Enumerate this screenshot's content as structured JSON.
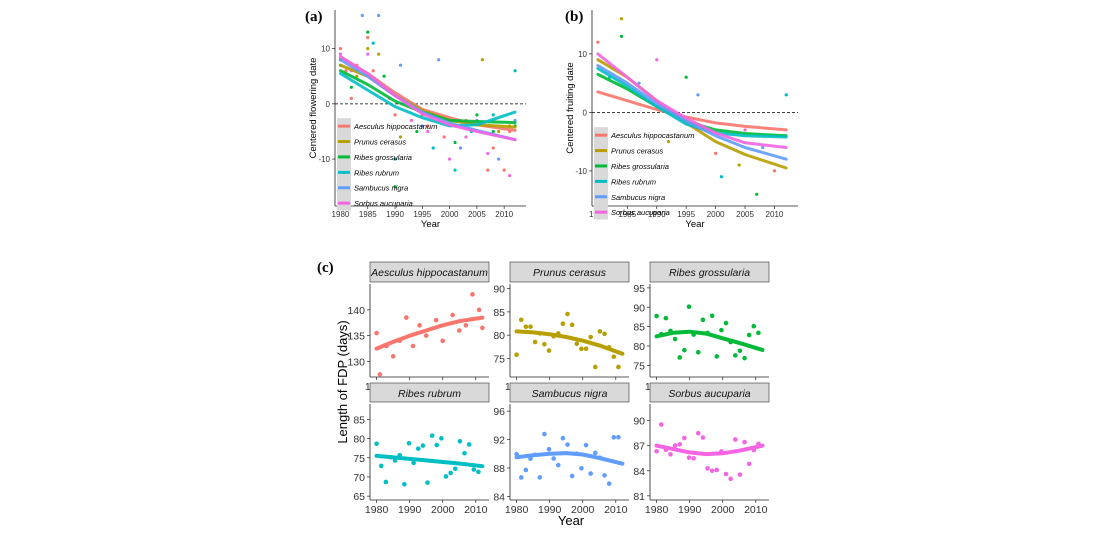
{
  "figure": {
    "panel_a_label": "(a)",
    "panel_b_label": "(b)",
    "panel_c_label": "(c)"
  },
  "chart_data": [
    {
      "id": "a",
      "type": "scatter",
      "xlabel": "Year",
      "ylabel": "Centered flowering date",
      "xlim": [
        1979,
        2014
      ],
      "ylim": [
        -18.5,
        17
      ],
      "xticks": [
        1980,
        1985,
        1990,
        1995,
        2000,
        2005,
        2010
      ],
      "yticks": [
        -10,
        0,
        10
      ],
      "reference_line": 0,
      "legend_position": "bottom-left",
      "series": [
        {
          "name": "Aesculus hippocastanum",
          "color": "#F8766D",
          "trend_x": [
            1980,
            1985,
            1990,
            1995,
            2000,
            2005,
            2012
          ],
          "trend_y": [
            8.5,
            5.5,
            2,
            -1,
            -2.5,
            -3.8,
            -4.8
          ],
          "points": [
            [
              1980,
              10
            ],
            [
              1981,
              6
            ],
            [
              1982,
              1
            ],
            [
              1983,
              7
            ],
            [
              1985,
              12
            ],
            [
              1986,
              6
            ],
            [
              1988,
              3
            ],
            [
              1990,
              -2
            ],
            [
              1993,
              0
            ],
            [
              1996,
              -4
            ],
            [
              1999,
              -6
            ],
            [
              2003,
              -3
            ],
            [
              2007,
              -12
            ],
            [
              2008,
              -8
            ],
            [
              2010,
              -12
            ],
            [
              2011,
              -5
            ]
          ]
        },
        {
          "name": "Prunus cerasus",
          "color": "#B79F00",
          "trend_x": [
            1980,
            1985,
            1990,
            1995,
            2000,
            2005,
            2012
          ],
          "trend_y": [
            7,
            5,
            1.5,
            -1.2,
            -3,
            -3.8,
            -4.2
          ],
          "points": [
            [
              1980,
              8
            ],
            [
              1983,
              5
            ],
            [
              1985,
              10
            ],
            [
              1987,
              9
            ],
            [
              1991,
              -6
            ],
            [
              1995,
              -2
            ],
            [
              1998,
              -3
            ],
            [
              2002,
              -4
            ],
            [
              2006,
              8
            ],
            [
              2009,
              -5
            ],
            [
              2011,
              -4
            ]
          ]
        },
        {
          "name": "Ribes grossularia",
          "color": "#00BA38",
          "trend_x": [
            1980,
            1985,
            1990,
            1995,
            2000,
            2005,
            2012
          ],
          "trend_y": [
            6,
            3.5,
            0.5,
            -1.5,
            -3,
            -3.2,
            -3.4
          ],
          "points": [
            [
              1980,
              8
            ],
            [
              1982,
              3
            ],
            [
              1985,
              13
            ],
            [
              1988,
              5
            ],
            [
              1990,
              -15
            ],
            [
              1994,
              -5
            ],
            [
              1997,
              -2
            ],
            [
              2001,
              -7
            ],
            [
              2005,
              -2
            ],
            [
              2008,
              -5
            ],
            [
              2012,
              -4
            ]
          ]
        },
        {
          "name": "Ribes rubrum",
          "color": "#00BFC4",
          "trend_x": [
            1980,
            1985,
            1990,
            1995,
            2000,
            2005,
            2012
          ],
          "trend_y": [
            5.5,
            2.5,
            -0.5,
            -2.5,
            -4,
            -3.8,
            -1.5
          ],
          "points": [
            [
              1980,
              7
            ],
            [
              1983,
              6
            ],
            [
              1986,
              11
            ],
            [
              1990,
              -10
            ],
            [
              1994,
              -1
            ],
            [
              1997,
              -8
            ],
            [
              2001,
              -12
            ],
            [
              2004,
              -5
            ],
            [
              2008,
              -2
            ],
            [
              2012,
              6
            ]
          ]
        },
        {
          "name": "Sambucus nigra",
          "color": "#619CFF",
          "trend_x": [
            1980,
            1985,
            1990,
            1995,
            2000,
            2005,
            2012
          ],
          "trend_y": [
            8,
            5,
            1.5,
            -1.5,
            -3.5,
            -4.8,
            -6.5
          ],
          "points": [
            [
              1980,
              9
            ],
            [
              1984,
              16
            ],
            [
              1987,
              16
            ],
            [
              1991,
              7
            ],
            [
              1995,
              -4
            ],
            [
              1998,
              8
            ],
            [
              2002,
              -8
            ],
            [
              2005,
              -3
            ],
            [
              2009,
              -10
            ],
            [
              2012,
              -3
            ]
          ]
        },
        {
          "name": "Sorbus aucuparia",
          "color": "#F564E3",
          "trend_x": [
            1980,
            1985,
            1990,
            1995,
            2000,
            2005,
            2012
          ],
          "trend_y": [
            8.5,
            5.5,
            1.5,
            -1.8,
            -3.8,
            -5,
            -6.5
          ],
          "points": [
            [
              1980,
              9
            ],
            [
              1982,
              6
            ],
            [
              1985,
              9
            ],
            [
              1989,
              1
            ],
            [
              1993,
              -3
            ],
            [
              1996,
              -5
            ],
            [
              2000,
              -10
            ],
            [
              2003,
              -6
            ],
            [
              2007,
              -9
            ],
            [
              2011,
              -13
            ]
          ]
        }
      ]
    },
    {
      "id": "b",
      "type": "scatter",
      "xlabel": "Year",
      "ylabel": "Centered fruiting date",
      "xlim": [
        1979,
        2014
      ],
      "ylim": [
        -16,
        17.5
      ],
      "xticks": [
        1980,
        1985,
        1990,
        1995,
        2000,
        2005,
        2010
      ],
      "yticks": [
        -10,
        0,
        10
      ],
      "reference_line": 0,
      "legend_position": "bottom-left",
      "series": [
        {
          "name": "Aesculus hippocastanum",
          "color": "#F8766D",
          "trend_x": [
            1980,
            1985,
            1990,
            1995,
            2000,
            2005,
            2012
          ],
          "trend_y": [
            3.5,
            2,
            0.5,
            -0.8,
            -1.8,
            -2.4,
            -3
          ]
        },
        {
          "name": "Prunus cerasus",
          "color": "#B79F00",
          "trend_x": [
            1980,
            1985,
            1990,
            1995,
            2000,
            2005,
            2012
          ],
          "trend_y": [
            9,
            6,
            2,
            -1.8,
            -5,
            -7.2,
            -9.5
          ]
        },
        {
          "name": "Ribes grossularia",
          "color": "#00BA38",
          "trend_x": [
            1980,
            1985,
            1990,
            1995,
            2000,
            2005,
            2012
          ],
          "trend_y": [
            6.5,
            4,
            1,
            -1.5,
            -3,
            -3.6,
            -4
          ]
        },
        {
          "name": "Ribes rubrum",
          "color": "#00BFC4",
          "trend_x": [
            1980,
            1985,
            1990,
            1995,
            2000,
            2005,
            2012
          ],
          "trend_y": [
            7.5,
            4.5,
            1,
            -2,
            -3.5,
            -4,
            -4.2
          ]
        },
        {
          "name": "Sambucus nigra",
          "color": "#619CFF",
          "trend_x": [
            1980,
            1985,
            1990,
            1995,
            2000,
            2005,
            2012
          ],
          "trend_y": [
            8,
            5,
            1.5,
            -1.5,
            -4,
            -6,
            -8
          ]
        },
        {
          "name": "Sorbus aucuparia",
          "color": "#F564E3",
          "trend_x": [
            1980,
            1985,
            1990,
            1995,
            2000,
            2005,
            2012
          ],
          "trend_y": [
            10,
            6,
            2,
            -1,
            -3.5,
            -5.2,
            -6
          ]
        }
      ],
      "points": [
        [
          1980,
          12,
          "#F8766D"
        ],
        [
          1982,
          6,
          "#00BFC4"
        ],
        [
          1984,
          16,
          "#B79F00"
        ],
        [
          1984,
          13,
          "#00BA38"
        ],
        [
          1987,
          5,
          "#619CFF"
        ],
        [
          1990,
          9,
          "#F564E3"
        ],
        [
          1992,
          -5,
          "#B79F00"
        ],
        [
          1995,
          6,
          "#00BA38"
        ],
        [
          1997,
          3,
          "#619CFF"
        ],
        [
          2000,
          -7,
          "#F8766D"
        ],
        [
          2001,
          -11,
          "#00BFC4"
        ],
        [
          2004,
          -9,
          "#B79F00"
        ],
        [
          2005,
          -3,
          "#F564E3"
        ],
        [
          2007,
          -14,
          "#00BA38"
        ],
        [
          2008,
          -6,
          "#619CFF"
        ],
        [
          2010,
          -10,
          "#F8766D"
        ],
        [
          2012,
          3,
          "#00BFC4"
        ]
      ]
    },
    {
      "id": "c",
      "type": "scatter",
      "ylabel": "Length of FDP (days)",
      "xlabel": "Year",
      "xlim": [
        1978,
        2014
      ],
      "xticks": [
        1980,
        1990,
        2000,
        2010
      ],
      "facets": [
        {
          "name": "Aesculus hippocastanum",
          "color": "#F8766D",
          "ylim": [
            127,
            145
          ],
          "yticks": [
            130,
            135,
            140
          ],
          "trend_x": [
            1980,
            1985,
            1990,
            1995,
            2000,
            2005,
            2012
          ],
          "trend_y": [
            132.5,
            133.8,
            135,
            136,
            137,
            137.8,
            138.5
          ],
          "points": [
            [
              1980,
              135.5
            ],
            [
              1981,
              127.5
            ],
            [
              1983,
              133
            ],
            [
              1985,
              131
            ],
            [
              1987,
              134
            ],
            [
              1989,
              138.5
            ],
            [
              1991,
              133
            ],
            [
              1993,
              137
            ],
            [
              1995,
              135
            ],
            [
              1998,
              138
            ],
            [
              2000,
              134
            ],
            [
              2003,
              139
            ],
            [
              2005,
              136
            ],
            [
              2007,
              137
            ],
            [
              2009,
              143
            ],
            [
              2011,
              140
            ],
            [
              2012,
              136.5
            ]
          ]
        },
        {
          "name": "Prunus cerasus",
          "color": "#B79F00",
          "ylim": [
            71,
            91
          ],
          "yticks": [
            75,
            80,
            85,
            90
          ],
          "trend_x": [
            1980,
            1985,
            1990,
            1995,
            2000,
            2005,
            2012
          ],
          "trend_y": [
            80.8,
            80.6,
            80.2,
            79.6,
            78.8,
            77.8,
            76
          ]
        },
        {
          "name": "Ribes grossularia",
          "color": "#00BA38",
          "ylim": [
            72,
            96
          ],
          "yticks": [
            75,
            80,
            85,
            90,
            95
          ],
          "trend_x": [
            1980,
            1985,
            1990,
            1995,
            2000,
            2005,
            2012
          ],
          "trend_y": [
            82.5,
            83.4,
            83.7,
            83.2,
            82,
            80.8,
            79
          ]
        },
        {
          "name": "Ribes rubrum",
          "color": "#00BFC4",
          "ylim": [
            64,
            89
          ],
          "yticks": [
            65,
            70,
            75,
            80,
            85
          ],
          "trend_x": [
            1980,
            1985,
            1990,
            1995,
            2000,
            2005,
            2012
          ],
          "trend_y": [
            75.5,
            75.1,
            74.7,
            74.3,
            73.9,
            73.5,
            72.8
          ]
        },
        {
          "name": "Sambucus nigra",
          "color": "#619CFF",
          "ylim": [
            83.5,
            97
          ],
          "yticks": [
            84,
            88,
            92,
            96
          ],
          "trend_x": [
            1980,
            1985,
            1990,
            1995,
            2000,
            2005,
            2012
          ],
          "trend_y": [
            89.5,
            89.8,
            90,
            90.1,
            89.9,
            89.4,
            88.6
          ]
        },
        {
          "name": "Sorbus aucuparia",
          "color": "#F564E3",
          "ylim": [
            80.5,
            92
          ],
          "yticks": [
            81,
            84,
            87,
            90
          ],
          "trend_x": [
            1980,
            1985,
            1990,
            1995,
            2000,
            2005,
            2012
          ],
          "trend_y": [
            87,
            86.6,
            86.2,
            86,
            86.1,
            86.4,
            87
          ]
        }
      ]
    }
  ]
}
